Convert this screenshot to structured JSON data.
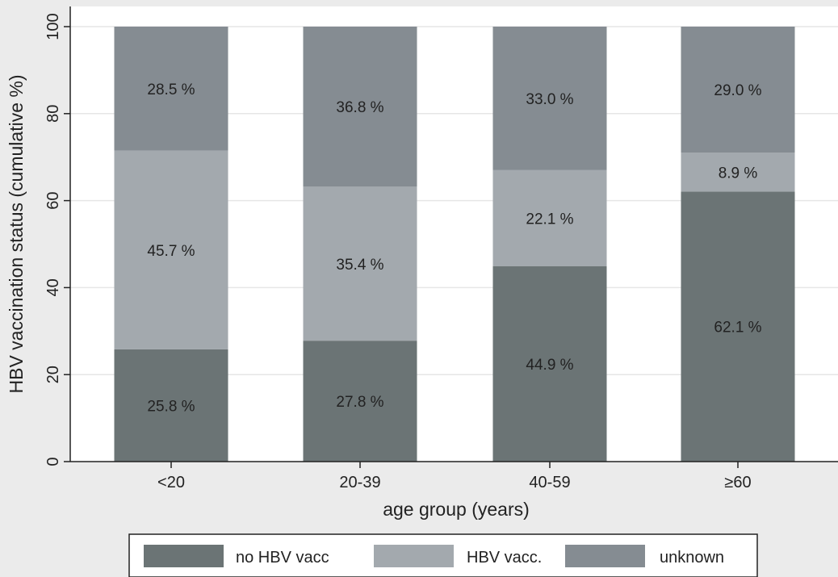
{
  "chart_data": {
    "type": "bar",
    "stacked": true,
    "categories": [
      "<20",
      "20-39",
      "40-59",
      "≥60"
    ],
    "series": [
      {
        "name": "no HBV vacc",
        "color": "#6b7475",
        "values": [
          25.8,
          27.8,
          44.9,
          62.1
        ],
        "labels": [
          "25.8 %",
          "27.8 %",
          "44.9 %",
          "62.1 %"
        ]
      },
      {
        "name": "HBV vacc.",
        "color": "#a3a9ae",
        "values": [
          45.7,
          35.4,
          22.1,
          8.9
        ],
        "labels": [
          "45.7 %",
          "35.4 %",
          "22.1 %",
          "8.9 %"
        ]
      },
      {
        "name": "unknown",
        "color": "#858c92",
        "values": [
          28.5,
          36.8,
          33.0,
          29.0
        ],
        "labels": [
          "28.5 %",
          "36.8 %",
          "33.0 %",
          "29.0 %"
        ]
      }
    ],
    "xlabel": "age group (years)",
    "ylabel": "HBV vaccination status (cumulative %)",
    "ylim": [
      0,
      100
    ],
    "yticks": [
      0,
      20,
      40,
      60,
      80,
      100
    ],
    "grid": true,
    "legend_position": "bottom",
    "plot_background": "#ffffff",
    "page_background": "#ebebeb"
  }
}
